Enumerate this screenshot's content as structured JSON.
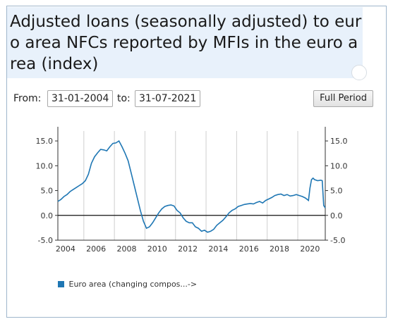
{
  "title": "Adjusted loans (seasonally adjusted) to euro area NFCs reported by MFIs in the euro area (index)",
  "controls": {
    "from_label": "From:",
    "from_value": "31-01-2004",
    "to_label": "to:",
    "to_value": "31-07-2021",
    "full_period_label": "Full Period"
  },
  "legend": {
    "label": "Euro area (changing compos...->",
    "color": "#1f77b4"
  },
  "chart_data": {
    "type": "line",
    "ylim": [
      -5,
      17
    ],
    "yticks": [
      "15.0",
      "10.0",
      "5.0",
      "0.0",
      "-5.0"
    ],
    "yticks_values": [
      15,
      10,
      5,
      0,
      -5
    ],
    "xlim": [
      2003.5,
      2021.0
    ],
    "xtick_labels": [
      "2004",
      "2006",
      "2008",
      "2010",
      "2012",
      "2014",
      "2016",
      "2018",
      "2020"
    ],
    "xtick_values": [
      2004,
      2006,
      2008,
      2010,
      2012,
      2014,
      2016,
      2018,
      2020
    ],
    "vertical_gridlines": [
      2005.2,
      2007.2,
      2009.2,
      2011.2,
      2013.2,
      2015.2,
      2017.2,
      2019.2
    ],
    "series": [
      {
        "name": "Euro area (changing compos...->",
        "color": "#1f77b4",
        "x": [
          2003.5,
          2003.7,
          2003.9,
          2004.1,
          2004.3,
          2004.5,
          2004.7,
          2004.9,
          2005.1,
          2005.3,
          2005.5,
          2005.7,
          2005.9,
          2006.1,
          2006.3,
          2006.5,
          2006.7,
          2006.9,
          2007.1,
          2007.3,
          2007.5,
          2007.7,
          2007.9,
          2008.1,
          2008.3,
          2008.5,
          2008.7,
          2008.9,
          2009.1,
          2009.3,
          2009.5,
          2009.7,
          2009.9,
          2010.1,
          2010.3,
          2010.5,
          2010.7,
          2010.9,
          2011.1,
          2011.3,
          2011.5,
          2011.7,
          2011.9,
          2012.1,
          2012.3,
          2012.5,
          2012.7,
          2012.9,
          2013.1,
          2013.3,
          2013.5,
          2013.7,
          2013.9,
          2014.1,
          2014.3,
          2014.5,
          2014.7,
          2014.9,
          2015.1,
          2015.3,
          2015.5,
          2015.7,
          2015.9,
          2016.1,
          2016.3,
          2016.5,
          2016.7,
          2016.9,
          2017.1,
          2017.3,
          2017.5,
          2017.7,
          2017.9,
          2018.1,
          2018.3,
          2018.5,
          2018.7,
          2018.9,
          2019.1,
          2019.3,
          2019.5,
          2019.7,
          2019.9,
          2020.0,
          2020.1,
          2020.2,
          2020.3,
          2020.5,
          2020.7,
          2020.8,
          2020.9,
          2021.0
        ],
        "y": [
          2.8,
          3.2,
          3.8,
          4.2,
          4.8,
          5.2,
          5.6,
          6.0,
          6.4,
          7.0,
          8.3,
          10.5,
          11.8,
          12.6,
          13.3,
          13.2,
          13.0,
          13.8,
          14.5,
          14.6,
          15.0,
          13.8,
          12.5,
          11.0,
          8.5,
          6.0,
          3.5,
          1.0,
          -1.2,
          -2.6,
          -2.3,
          -1.5,
          -0.5,
          0.5,
          1.3,
          1.8,
          2.0,
          2.1,
          1.9,
          1.0,
          0.5,
          -0.5,
          -1.2,
          -1.5,
          -1.5,
          -2.3,
          -2.6,
          -3.2,
          -3.0,
          -3.4,
          -3.2,
          -2.8,
          -2.0,
          -1.5,
          -1.0,
          -0.3,
          0.5,
          1.0,
          1.3,
          1.8,
          2.0,
          2.2,
          2.3,
          2.4,
          2.3,
          2.6,
          2.8,
          2.5,
          3.0,
          3.3,
          3.6,
          4.0,
          4.2,
          4.3,
          4.0,
          4.2,
          3.9,
          4.0,
          4.2,
          4.0,
          3.8,
          3.5,
          3.0,
          5.5,
          7.2,
          7.5,
          7.2,
          7.0,
          7.1,
          7.0,
          2.0,
          1.5
        ]
      }
    ]
  }
}
